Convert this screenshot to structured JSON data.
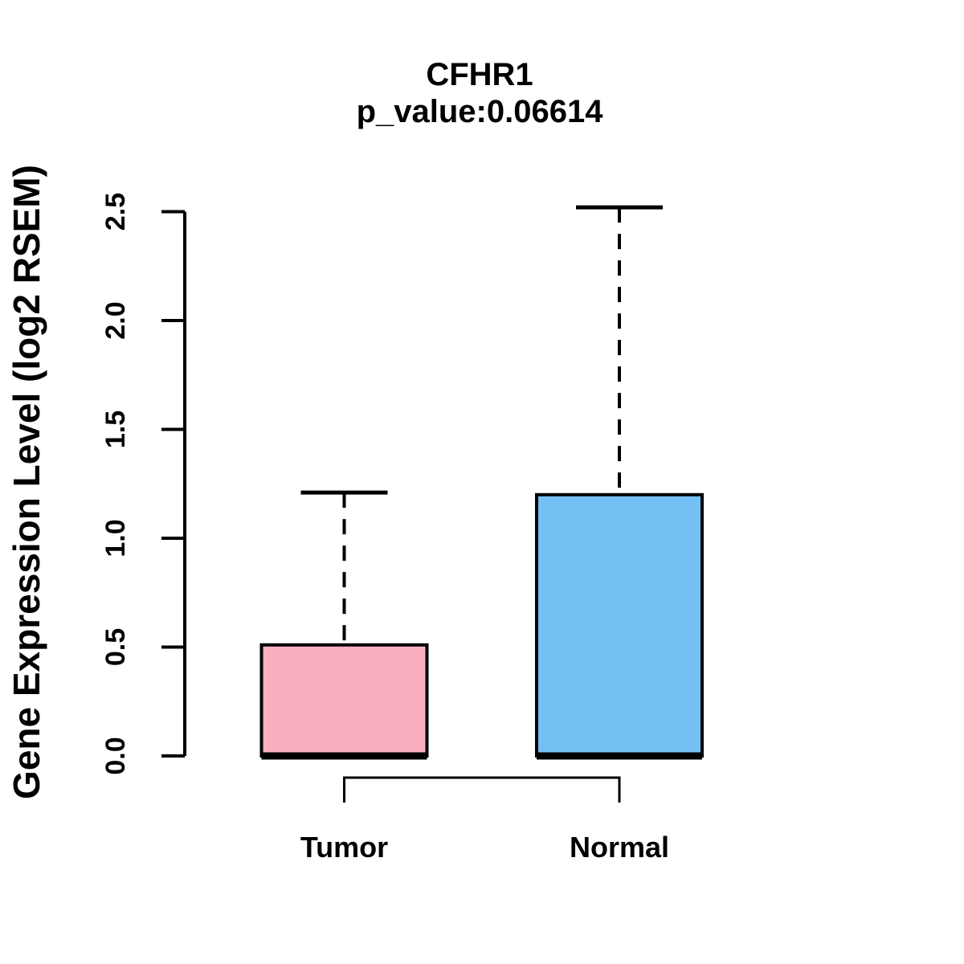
{
  "chart_data": {
    "type": "boxplot",
    "title": "CFHR1",
    "subtitle": "p_value:0.06614",
    "ylabel": "Gene Expression Level (log2 RSEM)",
    "xlabel": "",
    "categories": [
      "Tumor",
      "Normal"
    ],
    "ytick_labels": [
      "0.0",
      "0.5",
      "1.0",
      "1.5",
      "2.0",
      "2.5"
    ],
    "ytick_values": [
      0,
      0.5,
      1,
      1.5,
      2,
      2.5
    ],
    "ylim": [
      0,
      2.53
    ],
    "grid": false,
    "legend_position": "none",
    "background_color": "#ffffff",
    "axis_color": "#000000",
    "series": [
      {
        "name": "Tumor",
        "fill_color": "#FCAEC1",
        "border_color": "#000000",
        "lower_whisker": 0,
        "q1": 0,
        "median": 0,
        "q3": 0.51,
        "upper_whisker": 1.21
      },
      {
        "name": "Normal",
        "fill_color": "#74BFF4",
        "border_color": "#000000",
        "lower_whisker": 0,
        "q1": 0,
        "median": 0,
        "q3": 1.2,
        "upper_whisker": 2.52
      }
    ],
    "comparison_bracket": {
      "between": [
        "Tumor",
        "Normal"
      ]
    }
  }
}
